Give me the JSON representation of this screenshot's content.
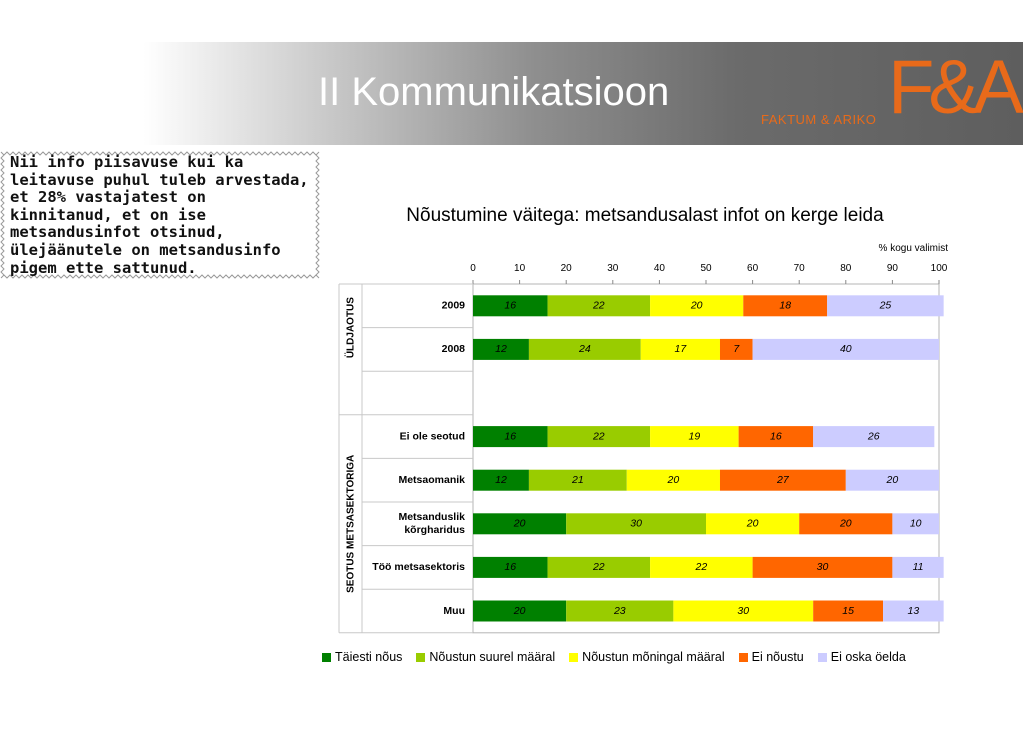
{
  "slide": {
    "title": "II Kommunikatsioon",
    "logo_mark": "F&A",
    "logo_text": "FAKTUM & ARIKO"
  },
  "note": {
    "text": "Nii info piisavuse kui ka leitavuse puhul tuleb arvestada, et 28% vastajatest on kinnitanud, et on ise metsandusinfot otsinud, ülejäänutele on metsandusinfo pigem ette sattunud."
  },
  "chart_data": {
    "type": "bar",
    "orientation": "horizontal-stacked",
    "title": "Nõustumine väitega: metsandusalast infot on kerge leida",
    "unit_label": "% kogu valimist",
    "xlim": [
      0,
      100
    ],
    "x_ticks": [
      0,
      10,
      20,
      30,
      40,
      50,
      60,
      70,
      80,
      90,
      100
    ],
    "grid": false,
    "legend_position": "bottom",
    "groups": [
      {
        "label": "ÜLDJAOTUS",
        "rows": [
          0,
          1
        ]
      },
      {
        "label": "SEOTUS METSASEKTORIGA",
        "rows": [
          3,
          4,
          5,
          6,
          7
        ]
      }
    ],
    "categories": [
      "2009",
      "2008",
      "",
      "Ei ole seotud",
      "Metsaomanik",
      "Metsanduslik kõrgharidus",
      "Töö metsasektoris",
      "Muu"
    ],
    "category_lines": [
      [
        "2009"
      ],
      [
        "2008"
      ],
      [],
      [
        "Ei ole seotud"
      ],
      [
        "Metsaomanik"
      ],
      [
        "Metsanduslik",
        "kõrgharidus"
      ],
      [
        "Töö metsasektoris"
      ],
      [
        "Muu"
      ]
    ],
    "series": [
      {
        "name": "Täiesti nõus",
        "color": "#008000",
        "values": [
          16,
          12,
          null,
          16,
          12,
          20,
          16,
          20
        ]
      },
      {
        "name": "Nõustun suurel määral",
        "color": "#99cc00",
        "values": [
          22,
          24,
          null,
          22,
          21,
          30,
          22,
          23
        ]
      },
      {
        "name": "Nõustun mõningal määral",
        "color": "#ffff00",
        "values": [
          20,
          17,
          null,
          19,
          20,
          20,
          22,
          30
        ]
      },
      {
        "name": "Ei nõustu",
        "color": "#ff6600",
        "values": [
          18,
          7,
          null,
          16,
          27,
          20,
          30,
          15
        ]
      },
      {
        "name": "Ei oska öelda",
        "color": "#ccccff",
        "values": [
          25,
          40,
          null,
          26,
          20,
          10,
          11,
          13
        ]
      }
    ]
  }
}
